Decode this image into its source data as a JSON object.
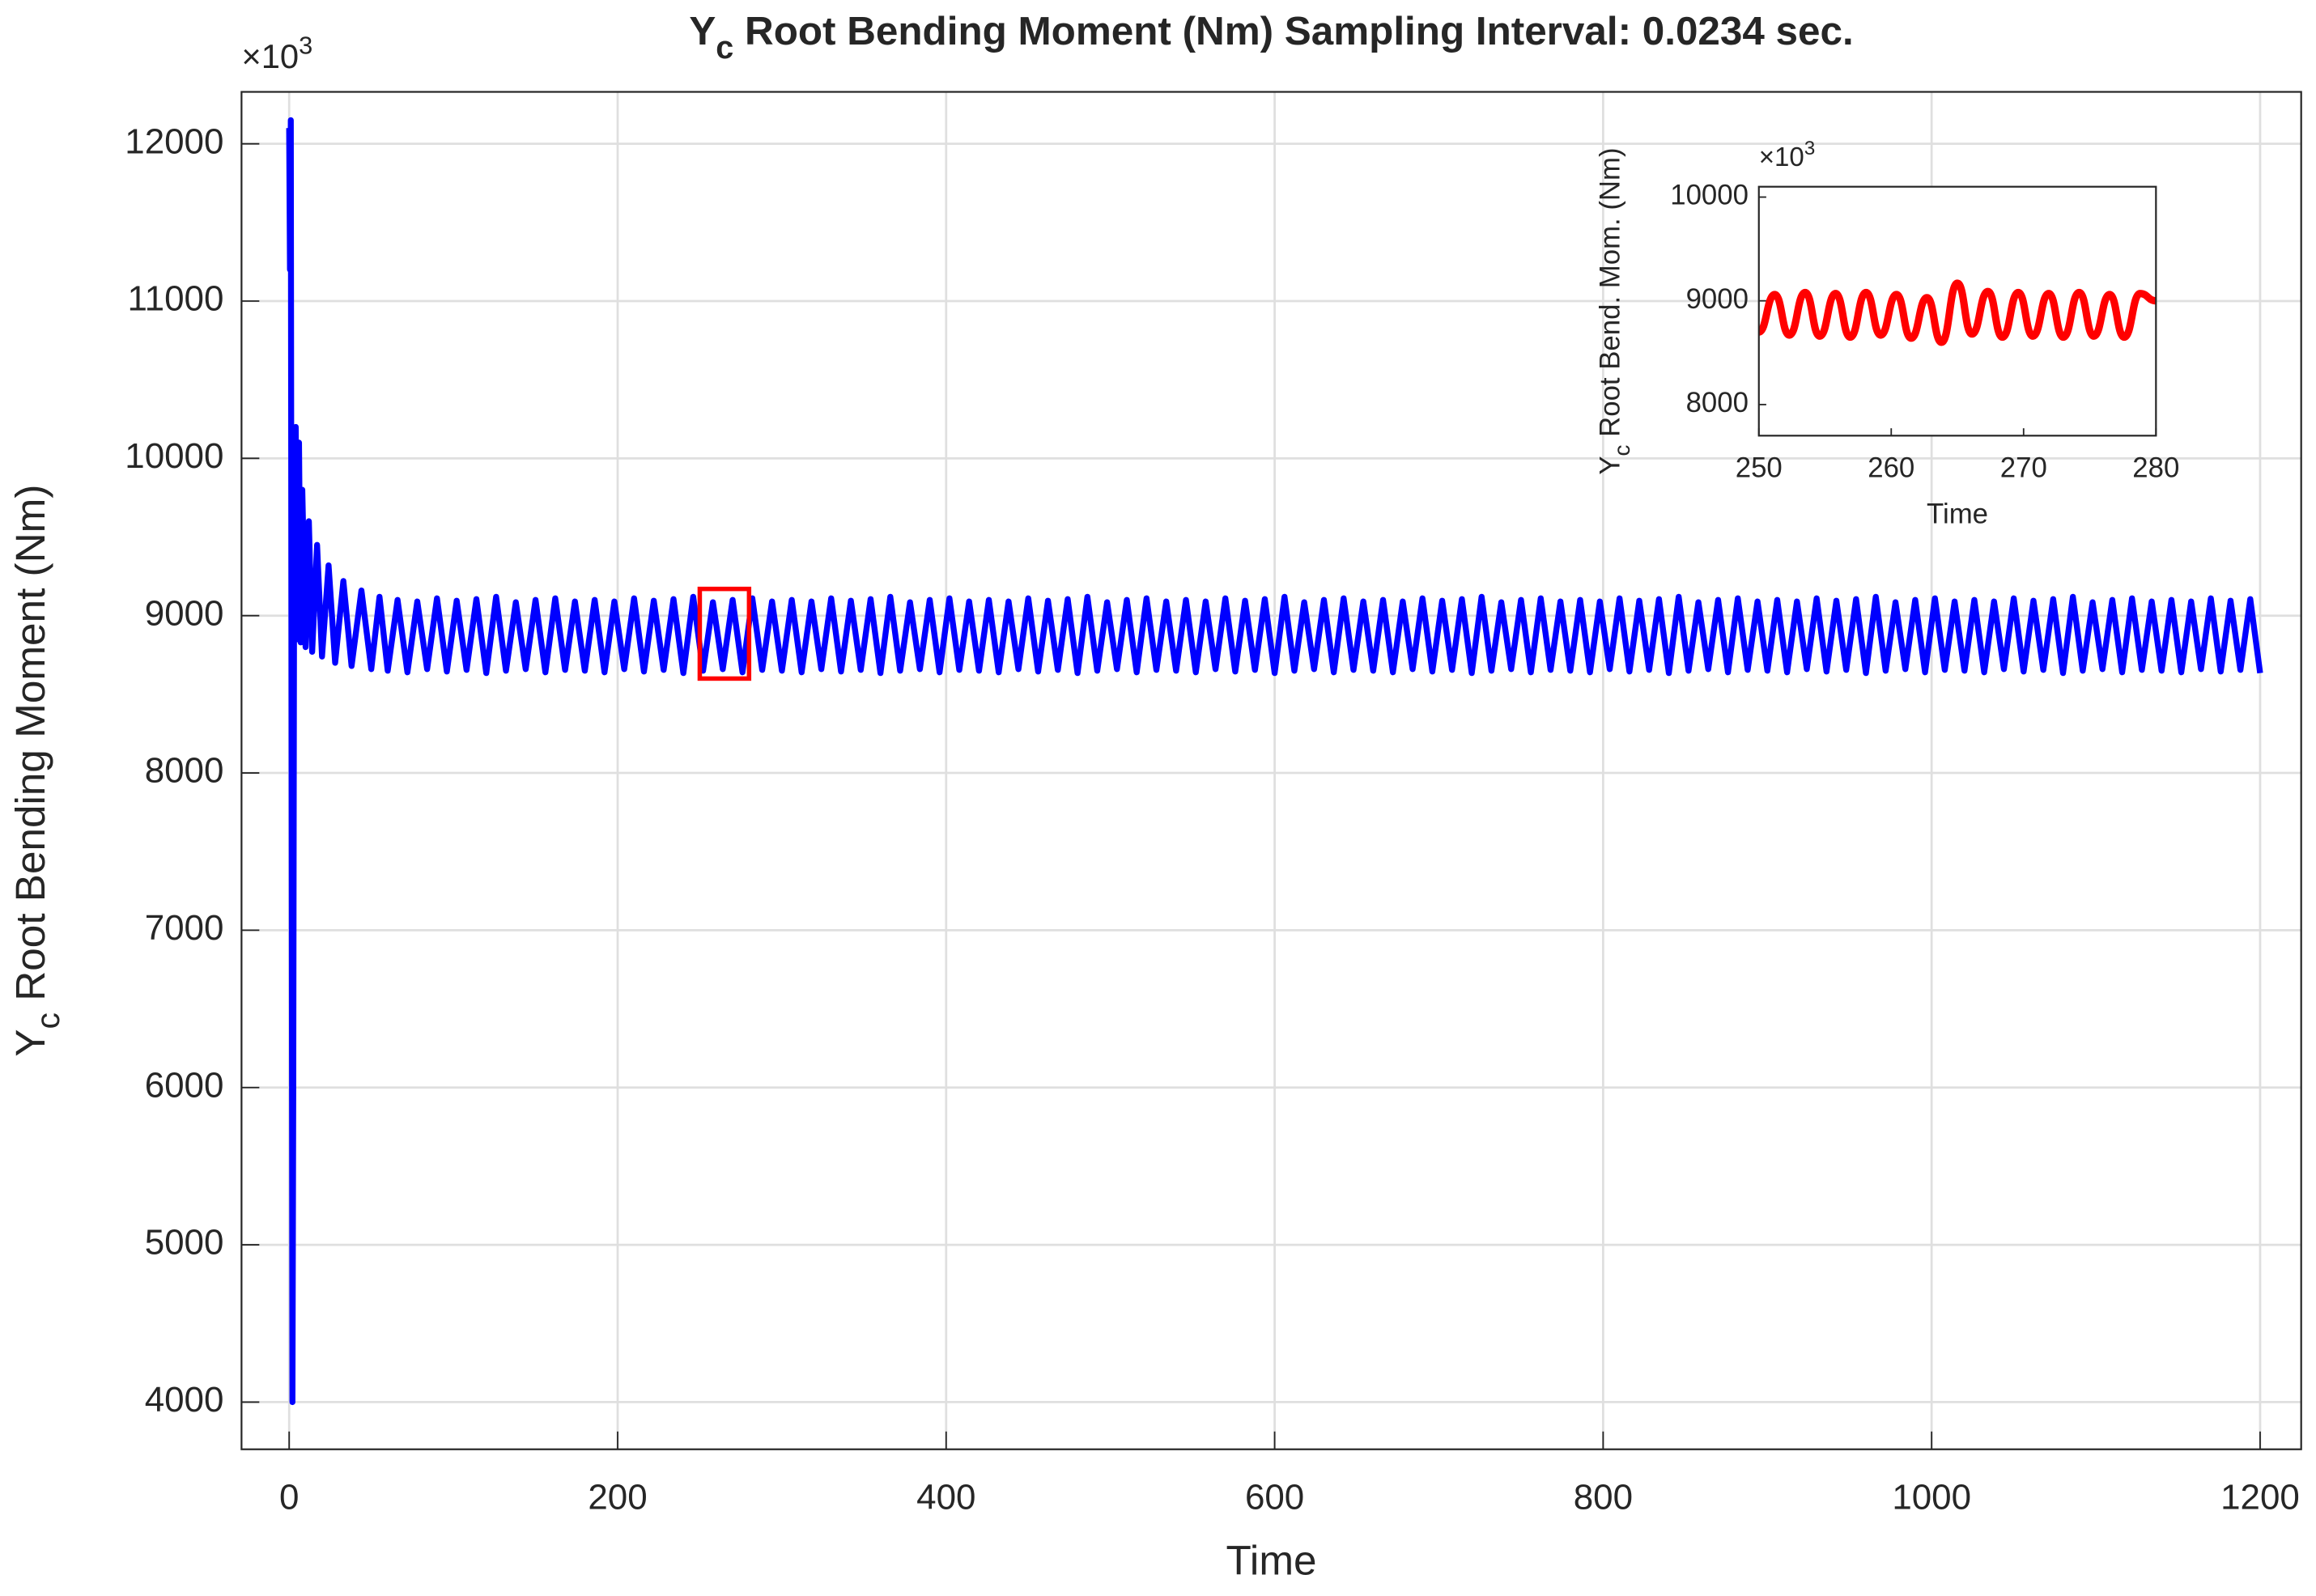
{
  "chart_data": [
    {
      "type": "line",
      "title": {
        "main": "Y",
        "sub": "c",
        "rest": " Root Bending Moment (Nm) Sampling Interval: 0.0234 sec."
      },
      "xlabel": "Time",
      "ylabel": {
        "main": "Y",
        "sub": "c",
        "rest": " Root Bending Moment (Nm)"
      },
      "y_multiplier": {
        "base": "×10",
        "exp": "3"
      },
      "xlim": [
        -29,
        1225
      ],
      "ylim": [
        3700,
        12330
      ],
      "xticks": [
        0,
        200,
        400,
        600,
        800,
        1000,
        1200
      ],
      "yticks": [
        4000,
        5000,
        6000,
        7000,
        8000,
        9000,
        10000,
        11000,
        12000
      ],
      "grid": true,
      "x": [
        0,
        0.5,
        1,
        1.5,
        2,
        2.5,
        3,
        4,
        5,
        6,
        7,
        8,
        10,
        12,
        14,
        17,
        20,
        24,
        28,
        33,
        38,
        44,
        50,
        55,
        60,
        66,
        72,
        78,
        84,
        90,
        96,
        102,
        108,
        114,
        120,
        126,
        132,
        138,
        144,
        150,
        156,
        162,
        168,
        174,
        180,
        186,
        192,
        198,
        204,
        210,
        216,
        222,
        228,
        234,
        240,
        246,
        252,
        258,
        264,
        270,
        276,
        282,
        288,
        294,
        300,
        306,
        312,
        318,
        324,
        330,
        336,
        342,
        348,
        354,
        360,
        366,
        372,
        378,
        384,
        390,
        396,
        402,
        408,
        414,
        420,
        426,
        432,
        438,
        444,
        450,
        456,
        462,
        468,
        474,
        480,
        486,
        492,
        498,
        504,
        510,
        516,
        522,
        528,
        534,
        540,
        546,
        552,
        558,
        564,
        570,
        576,
        582,
        588,
        594,
        600,
        606,
        612,
        618,
        624,
        630,
        636,
        642,
        648,
        654,
        660,
        666,
        672,
        678,
        684,
        690,
        696,
        702,
        708,
        714,
        720,
        726,
        732,
        738,
        744,
        750,
        756,
        762,
        768,
        774,
        780,
        786,
        792,
        798,
        804,
        810,
        816,
        822,
        828,
        834,
        840,
        846,
        852,
        858,
        864,
        870,
        876,
        882,
        888,
        894,
        900,
        906,
        912,
        918,
        924,
        930,
        936,
        942,
        948,
        954,
        960,
        966,
        972,
        978,
        984,
        990,
        996,
        1002,
        1008,
        1014,
        1020,
        1026,
        1032,
        1038,
        1044,
        1050,
        1056,
        1062,
        1068,
        1074,
        1080,
        1086,
        1092,
        1098,
        1104,
        1110,
        1116,
        1122,
        1128,
        1134,
        1140,
        1146,
        1152,
        1158,
        1164,
        1170,
        1176,
        1182,
        1188,
        1194,
        1200
      ],
      "series": [
        {
          "color": "#0000ff",
          "values": [
            12100,
            11200,
            12150,
            8000,
            4000,
            6000,
            9200,
            10200,
            8850,
            10100,
            8830,
            9800,
            8800,
            9600,
            8770,
            9450,
            8740,
            9320,
            8700,
            9220,
            8680,
            9160,
            8660,
            9120,
            8650,
            9100,
            8640,
            9090,
            8660,
            9110,
            8645,
            9095,
            8655,
            9105,
            8635,
            9120,
            8650,
            9085,
            8660,
            9100,
            8640,
            9110,
            8655,
            9090,
            8650,
            9100,
            8640,
            9090,
            8660,
            9110,
            8645,
            9095,
            8655,
            9105,
            8635,
            9120,
            8650,
            9085,
            8660,
            9100,
            8640,
            9110,
            8655,
            9090,
            8650,
            9100,
            8640,
            9090,
            8660,
            9110,
            8645,
            9095,
            8655,
            9105,
            8635,
            9120,
            8650,
            9085,
            8660,
            9100,
            8640,
            9110,
            8655,
            9090,
            8650,
            9100,
            8640,
            9090,
            8660,
            9110,
            8645,
            9095,
            8655,
            9105,
            8635,
            9120,
            8650,
            9085,
            8660,
            9100,
            8640,
            9110,
            8655,
            9090,
            8650,
            9100,
            8640,
            9090,
            8660,
            9110,
            8645,
            9095,
            8655,
            9105,
            8635,
            9120,
            8650,
            9085,
            8660,
            9100,
            8640,
            9110,
            8655,
            9090,
            8650,
            9100,
            8640,
            9090,
            8660,
            9110,
            8645,
            9095,
            8655,
            9105,
            8635,
            9120,
            8650,
            9085,
            8660,
            9100,
            8640,
            9110,
            8655,
            9090,
            8650,
            9100,
            8640,
            9090,
            8660,
            9110,
            8645,
            9095,
            8655,
            9105,
            8635,
            9120,
            8650,
            9085,
            8660,
            9100,
            8640,
            9110,
            8655,
            9090,
            8650,
            9100,
            8640,
            9090,
            8660,
            9110,
            8645,
            9095,
            8655,
            9105,
            8635,
            9120,
            8650,
            9085,
            8660,
            9100,
            8640,
            9110,
            8655,
            9090,
            8650,
            9100,
            8640,
            9090,
            8660,
            9110,
            8645,
            9095,
            8655,
            9105,
            8635,
            9120,
            8650,
            9085,
            8660,
            9100,
            8640,
            9110,
            8655,
            9090,
            8650,
            9100,
            8640,
            9090,
            8660,
            9110,
            8645,
            9095,
            8655,
            9105,
            8635
          ]
        }
      ],
      "highlight": {
        "x": [
          250,
          280
        ],
        "y": [
          8600,
          9170
        ],
        "color": "#ff0000"
      }
    },
    {
      "type": "line",
      "xlabel": "Time",
      "ylabel": {
        "main": "Y",
        "sub": "c",
        "rest": " Root Bend. Mom. (Nm)"
      },
      "y_multiplier": {
        "base": "×10",
        "exp": "3"
      },
      "xlim": [
        250,
        280
      ],
      "ylim": [
        7700,
        10100
      ],
      "xticks": [
        250,
        260,
        270,
        280
      ],
      "yticks": [
        8000,
        9000,
        10000
      ],
      "grid": false,
      "smooth": true,
      "x": [
        250,
        251.2,
        252.3,
        253.5,
        254.6,
        255.8,
        256.9,
        258.1,
        259.2,
        260.4,
        261.5,
        262.7,
        263.8,
        265,
        266.1,
        267.3,
        268.4,
        269.6,
        270.7,
        271.9,
        273,
        274.2,
        275.3,
        276.5,
        277.6,
        278.8,
        280
      ],
      "series": [
        {
          "color": "#ff0000",
          "values": [
            8700,
            9060,
            8670,
            9080,
            8660,
            9070,
            8650,
            9080,
            8670,
            9060,
            8640,
            9030,
            8600,
            9170,
            8680,
            9090,
            8650,
            9080,
            8660,
            9070,
            8650,
            9080,
            8660,
            9060,
            8650,
            9070,
            9000
          ]
        }
      ]
    }
  ]
}
